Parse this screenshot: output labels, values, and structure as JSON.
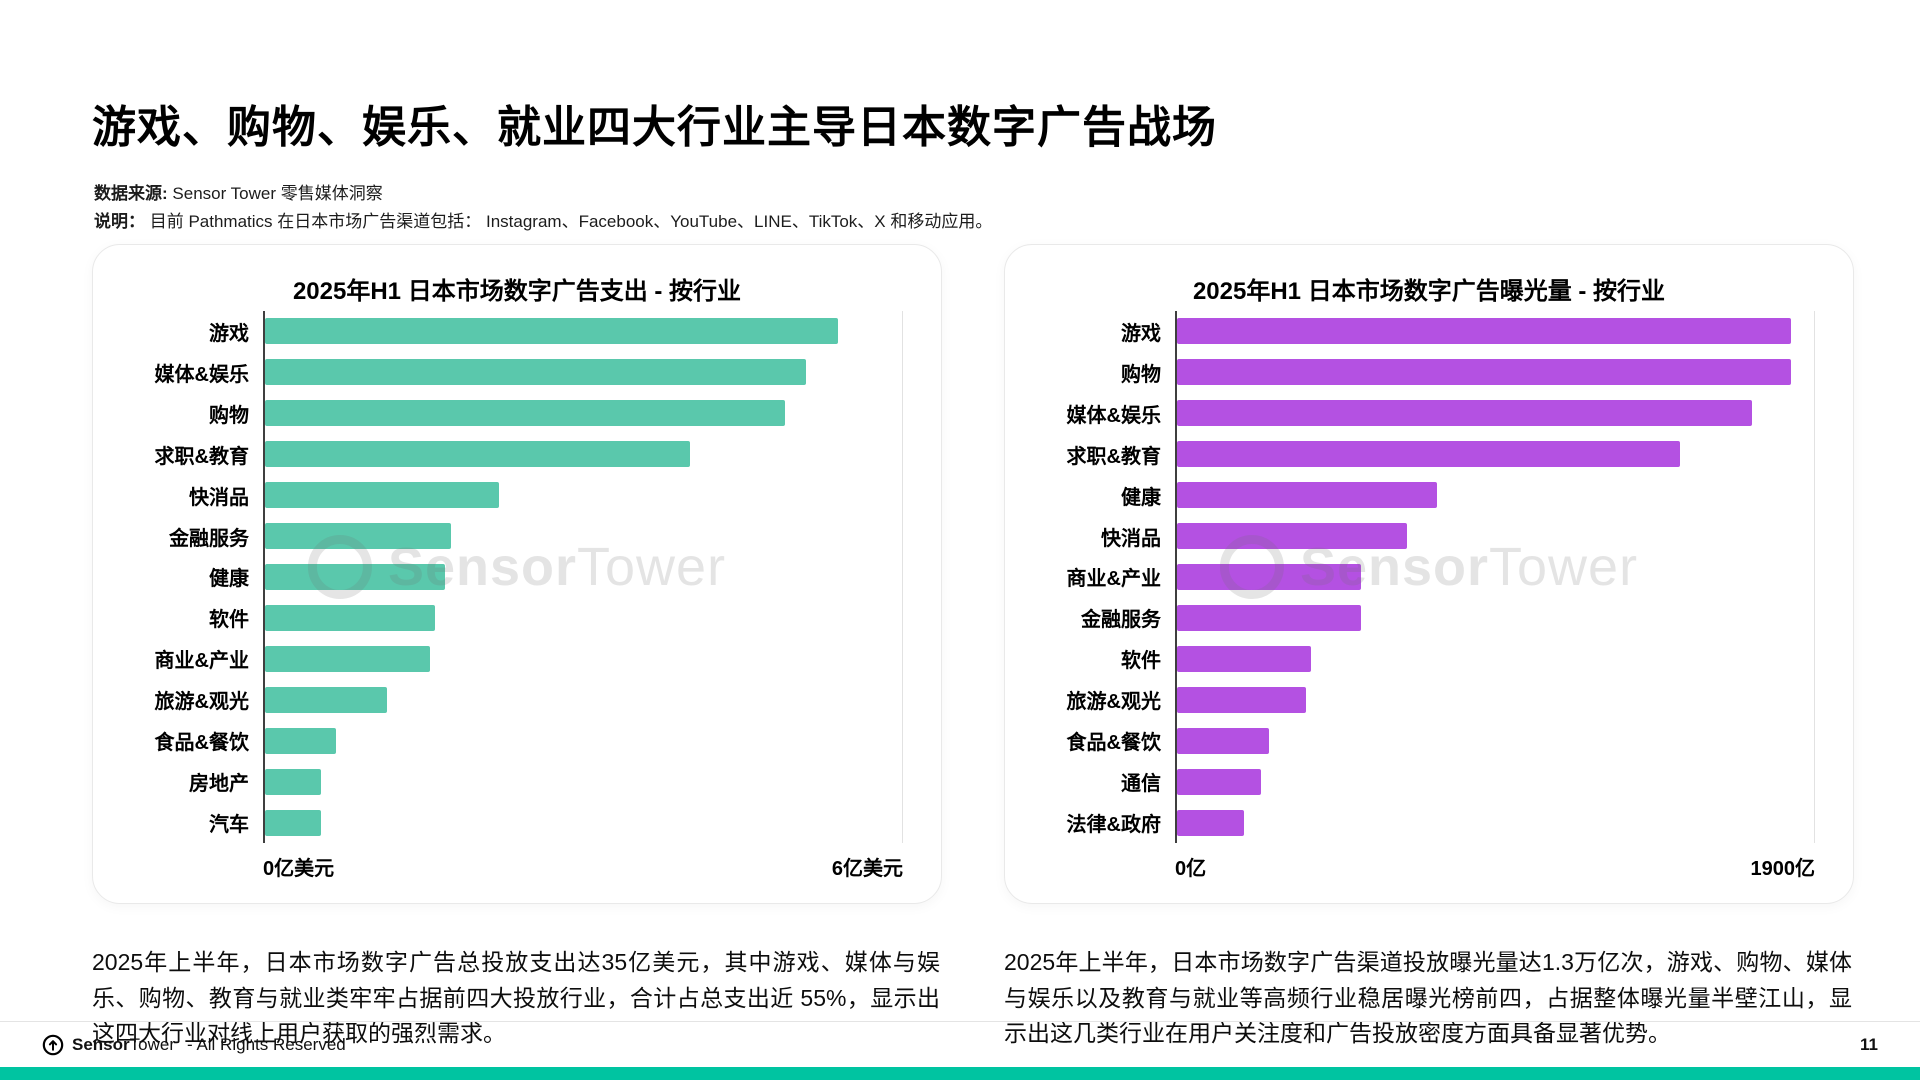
{
  "page": {
    "title": "游戏、购物、娱乐、就业四大行业主导日本数字广告战场",
    "source_label": "数据来源:",
    "source_value": " Sensor Tower 零售媒体洞察",
    "note_label": "说明：",
    "note_value": " 目前 Pathmatics 在日本市场广告渠道包括： Instagram、Facebook、YouTube、LINE、TikTok、X 和移动应用。",
    "watermark": {
      "part1": "Sensor",
      "part2": "Tower"
    },
    "left_note": "2025年上半年，日本市场数字广告总投放支出达35亿美元，其中游戏、媒体与娱乐、购物、教育与就业类牢牢占据前四大投放行业，合计占总支出近 55%，显示出这四大行业对线上用户获取的强烈需求。",
    "right_note": "2025年上半年，日本市场数字广告渠道投放曝光量达1.3万亿次，游戏、购物、媒体与娱乐以及教育与就业等高频行业稳居曝光榜前四，占据整体曝光量半壁江山，显示出这几类行业在用户关注度和广告投放密度方面具备显著优势。",
    "footer": {
      "brand_bold": "Sensor",
      "brand_rest": "Tower",
      "rights": "- All Rights Reserved",
      "page_number": "11"
    }
  },
  "colors": {
    "spend_bar": "#5AC8AC",
    "impressions_bar": "#B451E2",
    "bottom_bar": "#00C4A1",
    "axis_line": "#3f3f3f"
  },
  "chart_data": [
    {
      "type": "bar",
      "orientation": "horizontal",
      "title": "2025年H1 日本市场数字广告支出 - 按行业",
      "categories": [
        "游戏",
        "媒体&娱乐",
        "购物",
        "求职&教育",
        "快消品",
        "金融服务",
        "健康",
        "软件",
        "商业&产业",
        "旅游&观光",
        "食品&餐饮",
        "房地产",
        "汽车"
      ],
      "values": [
        5.4,
        5.1,
        4.9,
        4.0,
        2.2,
        1.75,
        1.7,
        1.6,
        1.55,
        1.15,
        0.67,
        0.53,
        0.53
      ],
      "unit": "亿美元",
      "xlim": [
        0,
        6
      ],
      "x_ticks": [
        "0亿美元",
        "6亿美元"
      ],
      "bar_color": "#5AC8AC",
      "grid": "edge-lines-only",
      "legend": "none"
    },
    {
      "type": "bar",
      "orientation": "horizontal",
      "title": "2025年H1 日本市场数字广告曝光量 - 按行业",
      "categories": [
        "游戏",
        "购物",
        "媒体&娱乐",
        "求职&教育",
        "健康",
        "快消品",
        "商业&产业",
        "金融服务",
        "软件",
        "旅游&观光",
        "食品&餐饮",
        "通信",
        "法律&政府"
      ],
      "values": [
        1830,
        1830,
        1715,
        1500,
        775,
        685,
        550,
        550,
        400,
        385,
        275,
        250,
        200
      ],
      "unit": "亿",
      "xlim": [
        0,
        1900
      ],
      "x_ticks": [
        "0亿",
        "1900亿"
      ],
      "bar_color": "#B451E2",
      "grid": "edge-lines-only",
      "legend": "none"
    }
  ]
}
